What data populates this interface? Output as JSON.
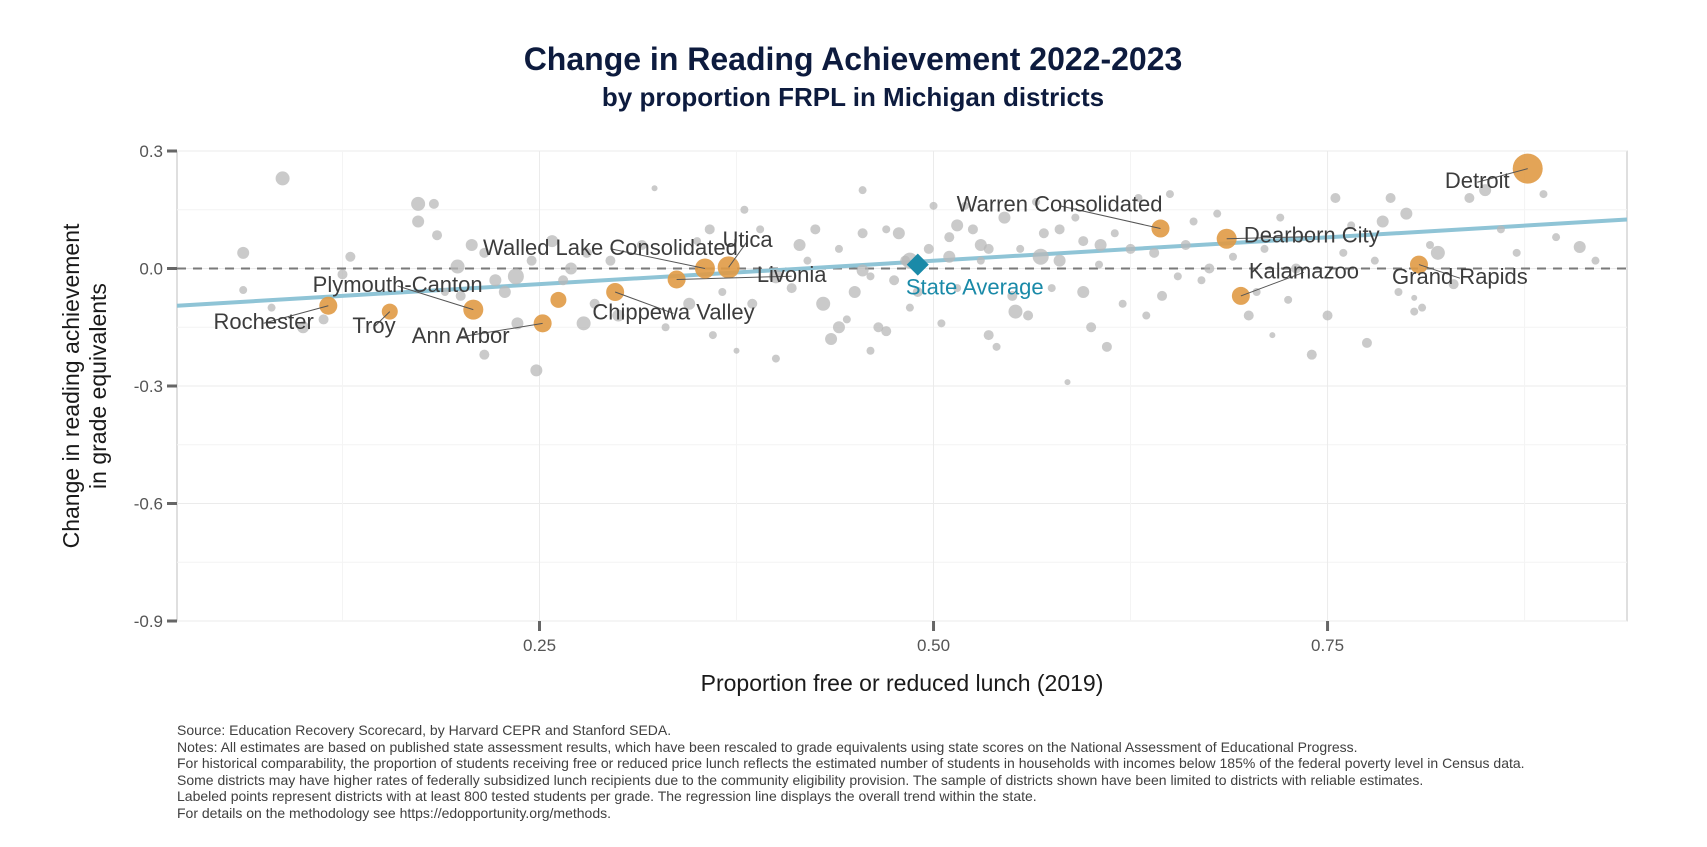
{
  "chart_data": {
    "type": "scatter",
    "title": "Change in Reading Achievement 2022-2023",
    "subtitle": "by proportion FRPL in Michigan districts",
    "xlabel": "Proportion free or reduced lunch (2019)",
    "ylabel": [
      "Change in reading  achievement",
      "in grade equivalents"
    ],
    "xlim": [
      0.02,
      0.94
    ],
    "ylim": [
      -0.9,
      0.3
    ],
    "x_ticks": [
      0.25,
      0.5,
      0.75
    ],
    "x_tick_labels": [
      "0.25",
      "0.50",
      "0.75"
    ],
    "y_ticks": [
      0.3,
      0.0,
      -0.3,
      -0.6,
      -0.9
    ],
    "y_tick_labels": [
      "0.3",
      "0.0",
      "-0.3",
      "-0.6",
      "-0.9"
    ],
    "grid": true,
    "reference_line_y": 0.0,
    "regression_line": {
      "x": [
        0.02,
        0.94
      ],
      "y": [
        -0.095,
        0.125
      ],
      "color": "#8fc4d6"
    },
    "colors": {
      "highlight": "#e09a45",
      "background": "#b8b8b8",
      "state": "#1a8aa8",
      "title": "#0d1b3e"
    },
    "state_average": {
      "label": "State Average",
      "x": 0.49,
      "y": 0.01
    },
    "labeled_points": [
      {
        "name": "Detroit",
        "x": 0.877,
        "y": 0.255,
        "size": 15,
        "lx": 0.845,
        "ly": 0.205
      },
      {
        "name": "Warren Consolidated",
        "x": 0.644,
        "y": 0.102,
        "size": 9,
        "lx": 0.58,
        "ly": 0.145
      },
      {
        "name": "Dearborn City",
        "x": 0.686,
        "y": 0.076,
        "size": 10,
        "lx": 0.74,
        "ly": 0.066
      },
      {
        "name": "Kalamazoo",
        "x": 0.695,
        "y": -0.07,
        "size": 9,
        "lx": 0.735,
        "ly": -0.025
      },
      {
        "name": "Grand Rapids",
        "x": 0.808,
        "y": 0.01,
        "size": 9,
        "lx": 0.834,
        "ly": -0.04
      },
      {
        "name": "Utica",
        "x": 0.37,
        "y": 0.003,
        "size": 11,
        "lx": 0.382,
        "ly": 0.055
      },
      {
        "name": "Livonia",
        "x": 0.337,
        "y": -0.028,
        "size": 9,
        "lx": 0.41,
        "ly": -0.035
      },
      {
        "name": "Walled Lake Consolidated",
        "x": 0.355,
        "y": 0.0,
        "size": 10,
        "lx": 0.295,
        "ly": 0.035
      },
      {
        "name": "Chippewa Valley",
        "x": 0.298,
        "y": -0.06,
        "size": 9,
        "lx": 0.335,
        "ly": -0.13
      },
      {
        "name": "Plymouth-Canton",
        "x": 0.208,
        "y": -0.105,
        "size": 10,
        "lx": 0.16,
        "ly": -0.06
      },
      {
        "name": "Ann Arbor",
        "x": 0.252,
        "y": -0.14,
        "size": 9,
        "lx": 0.2,
        "ly": -0.19
      },
      {
        "name": "Rochester",
        "x": 0.116,
        "y": -0.095,
        "size": 9,
        "lx": 0.075,
        "ly": -0.155
      },
      {
        "name": "Troy",
        "x": 0.155,
        "y": -0.11,
        "size": 8,
        "lx": 0.145,
        "ly": -0.165
      },
      {
        "name": "",
        "x": 0.262,
        "y": -0.08,
        "size": 8
      }
    ],
    "other_points": [
      [
        0.087,
        0.23,
        7
      ],
      [
        0.062,
        0.04,
        6
      ],
      [
        0.062,
        -0.055,
        4
      ],
      [
        0.173,
        0.165,
        7
      ],
      [
        0.183,
        0.165,
        5
      ],
      [
        0.173,
        0.12,
        6
      ],
      [
        0.185,
        0.085,
        5
      ],
      [
        0.207,
        0.06,
        6
      ],
      [
        0.198,
        0.005,
        7
      ],
      [
        0.222,
        -0.03,
        6
      ],
      [
        0.235,
        -0.02,
        8
      ],
      [
        0.245,
        0.02,
        5
      ],
      [
        0.258,
        0.07,
        6
      ],
      [
        0.265,
        -0.03,
        5
      ],
      [
        0.236,
        -0.14,
        6
      ],
      [
        0.248,
        -0.26,
        6
      ],
      [
        0.215,
        -0.22,
        5
      ],
      [
        0.2,
        -0.07,
        5
      ],
      [
        0.19,
        -0.06,
        4
      ],
      [
        0.13,
        0.03,
        5
      ],
      [
        0.125,
        -0.015,
        5
      ],
      [
        0.1,
        -0.15,
        6
      ],
      [
        0.113,
        -0.13,
        5
      ],
      [
        0.08,
        -0.1,
        4
      ],
      [
        0.278,
        -0.14,
        7
      ],
      [
        0.285,
        -0.09,
        5
      ],
      [
        0.3,
        -0.12,
        6
      ],
      [
        0.315,
        0.06,
        5
      ],
      [
        0.323,
        0.205,
        3
      ],
      [
        0.33,
        -0.15,
        4
      ],
      [
        0.35,
        0.07,
        4
      ],
      [
        0.358,
        0.1,
        5
      ],
      [
        0.36,
        -0.17,
        4
      ],
      [
        0.345,
        -0.09,
        6
      ],
      [
        0.366,
        -0.06,
        4
      ],
      [
        0.38,
        0.15,
        4
      ],
      [
        0.375,
        -0.21,
        3
      ],
      [
        0.39,
        0.1,
        4
      ],
      [
        0.4,
        -0.23,
        4
      ],
      [
        0.41,
        -0.05,
        5
      ],
      [
        0.42,
        0.02,
        4
      ],
      [
        0.425,
        0.1,
        5
      ],
      [
        0.43,
        -0.09,
        7
      ],
      [
        0.435,
        -0.18,
        6
      ],
      [
        0.44,
        0.05,
        4
      ],
      [
        0.445,
        -0.13,
        4
      ],
      [
        0.45,
        -0.06,
        6
      ],
      [
        0.455,
        0.2,
        4
      ],
      [
        0.455,
        0.09,
        5
      ],
      [
        0.46,
        -0.02,
        4
      ],
      [
        0.46,
        -0.21,
        4
      ],
      [
        0.465,
        -0.15,
        5
      ],
      [
        0.47,
        0.1,
        4
      ],
      [
        0.475,
        -0.03,
        5
      ],
      [
        0.478,
        0.09,
        6
      ],
      [
        0.482,
        0.02,
        5
      ],
      [
        0.485,
        -0.1,
        4
      ],
      [
        0.49,
        -0.06,
        5
      ],
      [
        0.497,
        0.05,
        5
      ],
      [
        0.5,
        0.16,
        4
      ],
      [
        0.505,
        -0.14,
        4
      ],
      [
        0.51,
        0.08,
        5
      ],
      [
        0.515,
        -0.05,
        4
      ],
      [
        0.52,
        0.16,
        4
      ],
      [
        0.525,
        0.1,
        5
      ],
      [
        0.53,
        0.02,
        4
      ],
      [
        0.535,
        -0.17,
        5
      ],
      [
        0.54,
        -0.2,
        4
      ],
      [
        0.545,
        0.13,
        6
      ],
      [
        0.55,
        -0.07,
        5
      ],
      [
        0.555,
        0.05,
        4
      ],
      [
        0.56,
        -0.12,
        5
      ],
      [
        0.565,
        0.17,
        4
      ],
      [
        0.57,
        0.09,
        5
      ],
      [
        0.575,
        -0.05,
        4
      ],
      [
        0.58,
        0.02,
        6
      ],
      [
        0.585,
        -0.29,
        3
      ],
      [
        0.59,
        0.13,
        4
      ],
      [
        0.595,
        0.07,
        5
      ],
      [
        0.6,
        -0.15,
        5
      ],
      [
        0.605,
        0.01,
        4
      ],
      [
        0.61,
        -0.2,
        5
      ],
      [
        0.615,
        0.09,
        4
      ],
      [
        0.62,
        -0.09,
        4
      ],
      [
        0.625,
        0.05,
        5
      ],
      [
        0.63,
        0.18,
        4
      ],
      [
        0.635,
        -0.12,
        4
      ],
      [
        0.64,
        0.04,
        5
      ],
      [
        0.645,
        -0.07,
        5
      ],
      [
        0.65,
        0.19,
        4
      ],
      [
        0.66,
        0.06,
        5
      ],
      [
        0.665,
        0.12,
        4
      ],
      [
        0.67,
        -0.03,
        4
      ],
      [
        0.675,
        0.0,
        5
      ],
      [
        0.68,
        0.14,
        4
      ],
      [
        0.69,
        0.03,
        4
      ],
      [
        0.7,
        -0.12,
        5
      ],
      [
        0.705,
        -0.06,
        4
      ],
      [
        0.71,
        0.05,
        4
      ],
      [
        0.715,
        -0.17,
        3
      ],
      [
        0.72,
        0.13,
        4
      ],
      [
        0.725,
        -0.08,
        4
      ],
      [
        0.73,
        0.0,
        5
      ],
      [
        0.74,
        -0.22,
        5
      ],
      [
        0.75,
        -0.12,
        5
      ],
      [
        0.755,
        0.18,
        5
      ],
      [
        0.76,
        0.04,
        4
      ],
      [
        0.765,
        0.11,
        4
      ],
      [
        0.775,
        -0.19,
        5
      ],
      [
        0.78,
        0.02,
        4
      ],
      [
        0.785,
        0.12,
        6
      ],
      [
        0.79,
        0.18,
        5
      ],
      [
        0.795,
        -0.06,
        4
      ],
      [
        0.8,
        0.14,
        6
      ],
      [
        0.81,
        -0.1,
        4
      ],
      [
        0.815,
        0.06,
        4
      ],
      [
        0.82,
        0.04,
        7
      ],
      [
        0.83,
        -0.04,
        5
      ],
      [
        0.84,
        0.18,
        5
      ],
      [
        0.85,
        0.2,
        6
      ],
      [
        0.86,
        0.1,
        4
      ],
      [
        0.87,
        0.04,
        4
      ],
      [
        0.887,
        0.19,
        4
      ],
      [
        0.895,
        0.08,
        4
      ],
      [
        0.91,
        0.055,
        6
      ],
      [
        0.92,
        0.02,
        4
      ],
      [
        0.805,
        -0.11,
        4
      ],
      [
        0.805,
        -0.075,
        3
      ],
      [
        0.655,
        -0.02,
        4
      ],
      [
        0.595,
        -0.06,
        6
      ],
      [
        0.568,
        0.03,
        8
      ],
      [
        0.552,
        -0.11,
        7
      ],
      [
        0.53,
        0.06,
        6
      ],
      [
        0.515,
        0.11,
        6
      ],
      [
        0.47,
        -0.16,
        5
      ],
      [
        0.44,
        -0.15,
        6
      ],
      [
        0.415,
        0.06,
        6
      ],
      [
        0.4,
        -0.02,
        7
      ],
      [
        0.385,
        -0.09,
        5
      ],
      [
        0.295,
        0.02,
        5
      ],
      [
        0.28,
        0.04,
        5
      ],
      [
        0.27,
        0.0,
        6
      ],
      [
        0.215,
        0.04,
        5
      ],
      [
        0.228,
        -0.06,
        6
      ],
      [
        0.58,
        0.1,
        5
      ],
      [
        0.606,
        0.06,
        6
      ],
      [
        0.485,
        0.02,
        8
      ],
      [
        0.455,
        -0.005,
        6
      ],
      [
        0.51,
        0.03,
        6
      ],
      [
        0.535,
        0.05,
        5
      ]
    ]
  },
  "notes": [
    "Source: Education Recovery Scorecard, by Harvard CEPR and Stanford SEDA.",
    "Notes: All estimates are based on published state assessment results, which have been rescaled to grade equivalents using state scores on the National Assessment of Educational Progress.",
    "For historical comparability, the proportion of students receiving free or reduced price lunch reflects the estimated number of students in households with incomes below 185% of the federal poverty level in Census data.",
    "Some districts may have higher rates of federally subsidized lunch recipients due to the community eligibility provision. The sample of districts shown have been limited to districts with reliable estimates.",
    "Labeled points represent districts with at least 800 tested students per grade. The regression line displays the overall trend within the state.",
    "For details on the methodology see https://edopportunity.org/methods."
  ]
}
